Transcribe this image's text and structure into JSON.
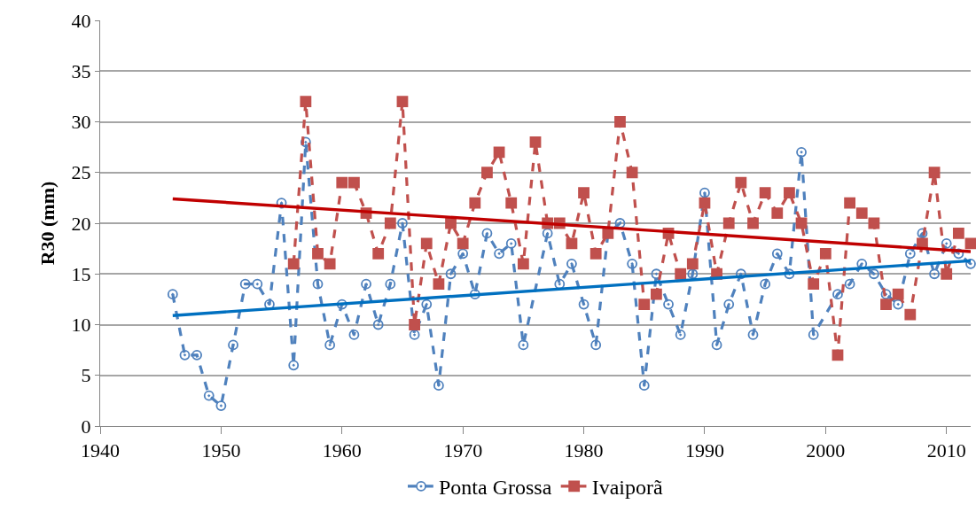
{
  "chart_data": {
    "type": "line",
    "ylabel": "R30 (mm)",
    "x": [
      1946,
      1947,
      1948,
      1949,
      1950,
      1951,
      1952,
      1953,
      1954,
      1955,
      1956,
      1957,
      1958,
      1959,
      1960,
      1961,
      1962,
      1963,
      1964,
      1965,
      1966,
      1967,
      1968,
      1969,
      1970,
      1971,
      1972,
      1973,
      1974,
      1975,
      1976,
      1977,
      1978,
      1979,
      1980,
      1981,
      1982,
      1983,
      1984,
      1985,
      1986,
      1987,
      1988,
      1989,
      1990,
      1991,
      1992,
      1993,
      1994,
      1995,
      1996,
      1997,
      1998,
      1999,
      2000,
      2001,
      2002,
      2003,
      2004,
      2005,
      2006,
      2007,
      2008,
      2009,
      2010,
      2011,
      2012
    ],
    "series": [
      {
        "name": "Ponta Grossa",
        "color": "#4f81bd",
        "marker": "circle",
        "line_style": "dashed",
        "values": [
          13,
          7,
          7,
          3,
          2,
          8,
          14,
          14,
          12,
          22,
          6,
          28,
          14,
          8,
          12,
          9,
          14,
          10,
          14,
          20,
          9,
          12,
          4,
          15,
          17,
          13,
          19,
          17,
          18,
          8,
          null,
          19,
          14,
          16,
          12,
          8,
          19,
          20,
          16,
          4,
          15,
          12,
          9,
          15,
          23,
          8,
          12,
          15,
          9,
          14,
          17,
          15,
          27,
          9,
          null,
          13,
          14,
          16,
          15,
          13,
          12,
          17,
          19,
          15,
          18,
          17,
          16
        ]
      },
      {
        "name": "Ivaiporã",
        "color": "#c0504d",
        "marker": "square",
        "line_style": "dashed",
        "values": [
          null,
          null,
          null,
          null,
          null,
          null,
          null,
          null,
          null,
          null,
          16,
          32,
          17,
          16,
          24,
          24,
          21,
          17,
          20,
          32,
          10,
          18,
          14,
          20,
          18,
          22,
          25,
          27,
          22,
          16,
          28,
          20,
          20,
          18,
          23,
          17,
          19,
          30,
          25,
          12,
          13,
          19,
          15,
          16,
          22,
          15,
          20,
          24,
          20,
          23,
          21,
          23,
          20,
          14,
          17,
          7,
          22,
          21,
          20,
          12,
          13,
          11,
          18,
          25,
          15,
          19,
          18
        ]
      },
      {
        "type": "line",
        "color": "#0070c0",
        "marker": "none",
        "line_style": "solid",
        "values": [
          10.9,
          null,
          null,
          null,
          null,
          null,
          null,
          null,
          null,
          null,
          null,
          null,
          null,
          null,
          null,
          null,
          null,
          null,
          null,
          null,
          null,
          null,
          null,
          null,
          null,
          null,
          null,
          null,
          null,
          null,
          null,
          null,
          null,
          null,
          null,
          null,
          null,
          null,
          null,
          null,
          null,
          null,
          null,
          null,
          null,
          null,
          null,
          null,
          null,
          null,
          null,
          null,
          null,
          null,
          null,
          null,
          null,
          null,
          null,
          null,
          null,
          null,
          null,
          null,
          null,
          null,
          16.3
        ]
      },
      {
        "type": "line",
        "color": "#c00000",
        "marker": "none",
        "line_style": "solid",
        "values": [
          22.4,
          null,
          null,
          null,
          null,
          null,
          null,
          null,
          null,
          null,
          null,
          null,
          null,
          null,
          null,
          null,
          null,
          null,
          null,
          null,
          null,
          null,
          null,
          null,
          null,
          null,
          null,
          null,
          null,
          null,
          null,
          null,
          null,
          null,
          null,
          null,
          null,
          null,
          null,
          null,
          null,
          null,
          null,
          null,
          null,
          null,
          null,
          null,
          null,
          null,
          null,
          null,
          null,
          null,
          null,
          null,
          null,
          null,
          null,
          null,
          null,
          null,
          null,
          null,
          null,
          null,
          17.2
        ]
      }
    ],
    "xlim": [
      1940,
      2012
    ],
    "xticks": [
      1940,
      1950,
      1960,
      1970,
      1980,
      1990,
      2000,
      2010
    ],
    "ylim": [
      0,
      40
    ],
    "yticks": [
      0,
      5,
      10,
      15,
      20,
      25,
      30,
      35,
      40
    ],
    "grid": "y",
    "legend": "bottom"
  }
}
